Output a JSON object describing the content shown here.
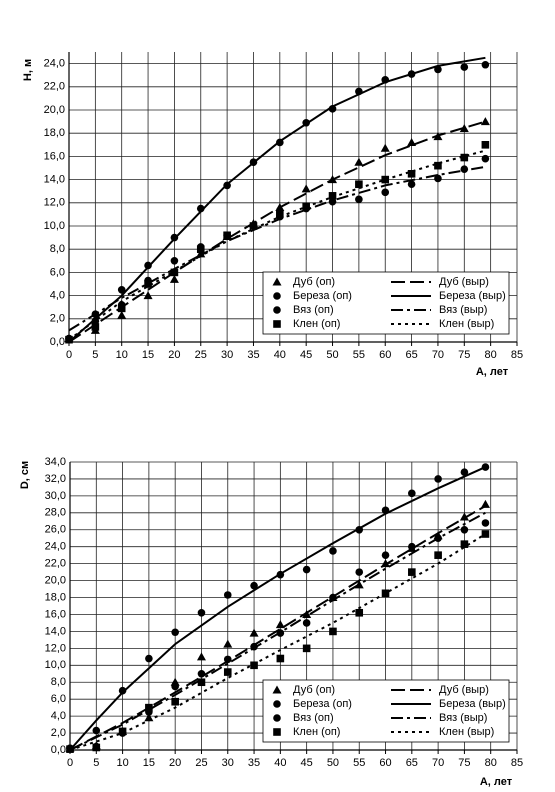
{
  "chart_data": [
    {
      "type": "line",
      "y_label": "H, м",
      "x_label": "А, лет",
      "xlim": [
        0,
        85
      ],
      "ylim": [
        0,
        25
      ],
      "xticks": [
        0,
        5,
        10,
        15,
        20,
        25,
        30,
        35,
        40,
        45,
        50,
        55,
        60,
        65,
        70,
        75,
        80,
        85
      ],
      "yticks": [
        {
          "value": 0,
          "label": "0,0"
        },
        {
          "value": 2,
          "label": "2,0"
        },
        {
          "value": 4,
          "label": "4,0"
        },
        {
          "value": 6,
          "label": "6,0"
        },
        {
          "value": 8,
          "label": "8,0"
        },
        {
          "value": 10,
          "label": "10,0"
        },
        {
          "value": 12,
          "label": "12,0"
        },
        {
          "value": 14,
          "label": "14,0"
        },
        {
          "value": 16,
          "label": "16,0"
        },
        {
          "value": 18,
          "label": "18,0"
        },
        {
          "value": 20,
          "label": "20,0"
        },
        {
          "value": 22,
          "label": "22,0"
        },
        {
          "value": 24,
          "label": "24,0"
        }
      ],
      "grid": true,
      "legend": "lower right",
      "series": [
        {
          "name": "Дуб (оп)",
          "color": "#000",
          "marker": "triangle",
          "x": [
            0,
            5,
            10,
            15,
            20,
            25,
            30,
            35,
            40,
            45,
            50,
            55,
            60,
            65,
            70,
            75,
            79
          ],
          "values": [
            0.3,
            1.0,
            2.3,
            4.0,
            5.4,
            7.6,
            9.1,
            10.2,
            11.6,
            13.2,
            14.0,
            15.5,
            16.7,
            17.2,
            17.7,
            18.4,
            19.0
          ]
        },
        {
          "name": "Береза (оп)",
          "color": "#000",
          "marker": "circle",
          "x": [
            0,
            5,
            10,
            15,
            20,
            25,
            30,
            35,
            40,
            45,
            50,
            55,
            60,
            65,
            70,
            75,
            79
          ],
          "values": [
            0.3,
            2.4,
            4.5,
            6.6,
            9.0,
            11.5,
            13.5,
            15.5,
            17.2,
            18.9,
            20.1,
            21.6,
            22.6,
            23.1,
            23.5,
            23.7,
            23.9
          ]
        },
        {
          "name": "Вяз (оп)",
          "color": "#000",
          "marker": "circle",
          "x": [
            0,
            5,
            10,
            15,
            20,
            25,
            30,
            35,
            40,
            45,
            50,
            55,
            60,
            65,
            70,
            75,
            79
          ],
          "values": [
            0.3,
            1.8,
            3.2,
            5.3,
            7.0,
            8.2,
            9.2,
            10.0,
            10.8,
            11.5,
            12.1,
            12.3,
            12.9,
            13.6,
            14.1,
            14.9,
            15.8
          ]
        },
        {
          "name": "Клен (оп)",
          "color": "#000",
          "marker": "square",
          "x": [
            0,
            5,
            10,
            15,
            20,
            25,
            30,
            35,
            40,
            45,
            50,
            55,
            60,
            65,
            70,
            75,
            79
          ],
          "values": [
            0.2,
            1.3,
            2.9,
            5.0,
            6.0,
            8.0,
            9.2,
            10.0,
            11.0,
            11.7,
            12.6,
            13.6,
            14.0,
            14.5,
            15.2,
            15.9,
            17.0
          ]
        },
        {
          "name": "Дуб (выр)",
          "color": "#000",
          "dash": "14 5",
          "x": [
            0,
            10,
            20,
            30,
            40,
            50,
            60,
            70,
            79
          ],
          "values": [
            0,
            3.0,
            6.0,
            8.9,
            11.6,
            14.0,
            16.1,
            17.8,
            19.0
          ]
        },
        {
          "name": "Береза (выр)",
          "color": "#000",
          "dash": "none",
          "x": [
            0,
            10,
            20,
            30,
            40,
            50,
            60,
            70,
            79
          ],
          "values": [
            0,
            4.0,
            8.9,
            13.6,
            17.3,
            20.3,
            22.4,
            23.8,
            24.5
          ]
        },
        {
          "name": "Вяз (выр)",
          "color": "#000",
          "dash": "12 4 3 4",
          "x": [
            0,
            10,
            20,
            30,
            40,
            50,
            60,
            70,
            79
          ],
          "values": [
            1.0,
            3.8,
            6.3,
            8.7,
            10.6,
            12.2,
            13.5,
            14.4,
            15.1
          ]
        },
        {
          "name": "Клен (выр)",
          "color": "#000",
          "dash": "3 4",
          "x": [
            0,
            10,
            20,
            30,
            40,
            50,
            60,
            70,
            79
          ],
          "values": [
            0.2,
            3.5,
            6.1,
            8.7,
            10.8,
            12.5,
            14.0,
            15.4,
            16.5
          ]
        }
      ]
    },
    {
      "type": "line",
      "y_label": "D, см",
      "x_label": "А, лет",
      "xlim": [
        0,
        85
      ],
      "ylim": [
        0,
        34
      ],
      "xticks": [
        0,
        5,
        10,
        15,
        20,
        25,
        30,
        35,
        40,
        45,
        50,
        55,
        60,
        65,
        70,
        75,
        80,
        85
      ],
      "yticks": [
        {
          "value": 0,
          "label": "0,0"
        },
        {
          "value": 2,
          "label": "2,0"
        },
        {
          "value": 4,
          "label": "4,0"
        },
        {
          "value": 6,
          "label": "6,0"
        },
        {
          "value": 8,
          "label": "8,0"
        },
        {
          "value": 10,
          "label": "10,0"
        },
        {
          "value": 12,
          "label": "12,0"
        },
        {
          "value": 14,
          "label": "14,0"
        },
        {
          "value": 16,
          "label": "16,0"
        },
        {
          "value": 18,
          "label": "18,0"
        },
        {
          "value": 20,
          "label": "20,0"
        },
        {
          "value": 22,
          "label": "22,0"
        },
        {
          "value": 24,
          "label": "24,0"
        },
        {
          "value": 26,
          "label": "26,0"
        },
        {
          "value": 28,
          "label": "28,0"
        },
        {
          "value": 30,
          "label": "30,0"
        },
        {
          "value": 32,
          "label": "32,0"
        },
        {
          "value": 34,
          "label": "34,0"
        }
      ],
      "grid": true,
      "legend": "lower right",
      "series": [
        {
          "name": "Дуб (оп)",
          "color": "#000",
          "marker": "triangle",
          "x": [
            0,
            5,
            10,
            15,
            20,
            25,
            30,
            35,
            40,
            45,
            50,
            55,
            60,
            65,
            70,
            75,
            79
          ],
          "values": [
            0.2,
            0.5,
            2.2,
            3.8,
            8.0,
            11.0,
            12.5,
            13.8,
            14.8,
            16.0,
            18.0,
            19.5,
            22.0,
            23.8,
            25.3,
            27.5,
            29.0
          ]
        },
        {
          "name": "Береза (оп)",
          "color": "#000",
          "marker": "circle",
          "x": [
            0,
            5,
            10,
            15,
            20,
            25,
            30,
            35,
            40,
            45,
            50,
            55,
            60,
            65,
            70,
            75,
            79
          ],
          "values": [
            0.2,
            2.3,
            7.0,
            10.8,
            13.9,
            16.2,
            18.3,
            19.4,
            20.7,
            21.3,
            23.5,
            26.0,
            28.3,
            30.3,
            32.0,
            32.8,
            33.4
          ]
        },
        {
          "name": "Вяз (оп)",
          "color": "#000",
          "marker": "circle",
          "x": [
            0,
            5,
            10,
            15,
            20,
            25,
            30,
            35,
            40,
            45,
            50,
            55,
            60,
            65,
            70,
            75,
            79
          ],
          "values": [
            0.2,
            0.4,
            2.0,
            4.5,
            7.5,
            9.0,
            10.7,
            12.2,
            13.8,
            15.0,
            18.0,
            21.0,
            23.0,
            24.0,
            25.0,
            26.0,
            26.8
          ]
        },
        {
          "name": "Клен (оп)",
          "color": "#000",
          "marker": "square",
          "x": [
            0,
            5,
            10,
            15,
            20,
            25,
            30,
            35,
            40,
            45,
            50,
            55,
            60,
            65,
            70,
            75,
            79
          ],
          "values": [
            0.1,
            0.3,
            2.2,
            5.0,
            5.7,
            8.0,
            9.2,
            10.0,
            10.8,
            12.0,
            14.0,
            16.2,
            18.5,
            21.0,
            23.0,
            24.3,
            25.5
          ]
        },
        {
          "name": "Дуб (выр)",
          "color": "#000",
          "dash": "14 5",
          "x": [
            0,
            10,
            20,
            30,
            40,
            50,
            60,
            70,
            79
          ],
          "values": [
            0,
            3.2,
            6.8,
            10.5,
            14.3,
            18.1,
            21.9,
            25.6,
            28.8
          ]
        },
        {
          "name": "Береза (выр)",
          "color": "#000",
          "dash": "none",
          "x": [
            0,
            5,
            10,
            20,
            30,
            40,
            50,
            60,
            70,
            79
          ],
          "values": [
            0,
            3.5,
            6.8,
            12.5,
            16.9,
            20.8,
            24.4,
            27.9,
            30.9,
            33.4
          ]
        },
        {
          "name": "Вяз (выр)",
          "color": "#000",
          "dash": "12 4 3 4",
          "x": [
            0,
            10,
            20,
            30,
            40,
            50,
            60,
            70,
            79
          ],
          "values": [
            0,
            3.0,
            6.5,
            10.2,
            13.9,
            17.7,
            21.4,
            25.0,
            28.0
          ]
        },
        {
          "name": "Клен (выр)",
          "color": "#000",
          "dash": "3 4",
          "x": [
            0,
            10,
            20,
            30,
            40,
            50,
            60,
            70,
            79
          ],
          "values": [
            0,
            2.0,
            5.0,
            8.5,
            11.8,
            15.0,
            18.5,
            22.0,
            25.5
          ]
        }
      ]
    }
  ]
}
